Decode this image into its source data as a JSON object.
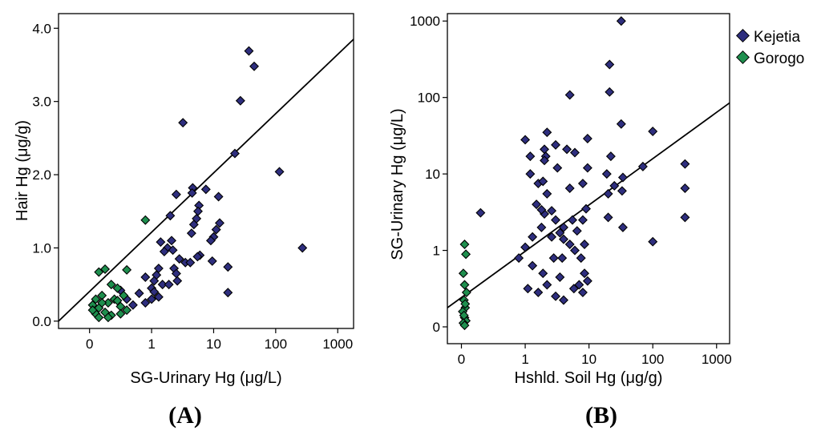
{
  "colors": {
    "kejetia": "#2e2e7e",
    "gorogo": "#1e8f4e",
    "stroke": "#000000"
  },
  "legend": {
    "kejetia": "Kejetia",
    "gorogo": "Gorogo"
  },
  "panels": {
    "A": "(A)",
    "B": "(B)"
  },
  "chart_data": [
    {
      "type": "scatter",
      "panel": "(A)",
      "xlabel": "SG-Urinary Hg (μg/L)",
      "ylabel": "Hair Hg (μg/g)",
      "xscale": "symlog",
      "xlim": [
        -0.5,
        1800
      ],
      "ylim": [
        -0.1,
        4.2
      ],
      "xticks": [
        0,
        1,
        10,
        100,
        1000
      ],
      "xtick_labels": [
        "0",
        "1",
        "10",
        "100",
        "1000"
      ],
      "yticks": [
        0.0,
        1.0,
        2.0,
        3.0,
        4.0
      ],
      "ytick_labels": [
        "0.0",
        "1.0",
        "2.0",
        "3.0",
        "4.0"
      ],
      "fit_line": {
        "x": [
          -0.5,
          1800
        ],
        "y": [
          0.0,
          3.85
        ]
      },
      "series": [
        {
          "name": "Kejetia",
          "points": [
            [
              37,
              3.69
            ],
            [
              45,
              3.48
            ],
            [
              27,
              3.01
            ],
            [
              3.2,
              2.71
            ],
            [
              22,
              2.29
            ],
            [
              4.6,
              1.82
            ],
            [
              7.5,
              1.8
            ],
            [
              2.5,
              1.73
            ],
            [
              4.5,
              1.75
            ],
            [
              5.8,
              1.58
            ],
            [
              12,
              1.7
            ],
            [
              5.6,
              1.5
            ],
            [
              5.3,
              1.4
            ],
            [
              4.8,
              1.32
            ],
            [
              4.4,
              1.2
            ],
            [
              2,
              1.44
            ],
            [
              1.4,
              1.08
            ],
            [
              2.1,
              1.1
            ],
            [
              1.8,
              1.0
            ],
            [
              1.6,
              0.95
            ],
            [
              2.2,
              0.97
            ],
            [
              12.5,
              1.34
            ],
            [
              11,
              1.25
            ],
            [
              10,
              1.15
            ],
            [
              9,
              1.1
            ],
            [
              6,
              0.9
            ],
            [
              5.5,
              0.88
            ],
            [
              2.8,
              0.85
            ],
            [
              3.5,
              0.8
            ],
            [
              4.2,
              0.8
            ],
            [
              2.3,
              0.72
            ],
            [
              2.5,
              0.65
            ],
            [
              1.3,
              0.72
            ],
            [
              1.2,
              0.63
            ],
            [
              0.9,
              0.6
            ],
            [
              1.1,
              0.55
            ],
            [
              1.0,
              0.45
            ],
            [
              0.8,
              0.38
            ],
            [
              1.5,
              0.5
            ],
            [
              1.9,
              0.5
            ],
            [
              2.6,
              0.55
            ],
            [
              9.5,
              0.82
            ],
            [
              17,
              0.74
            ],
            [
              17,
              0.39
            ],
            [
              115,
              2.04
            ],
            [
              270,
              1.0
            ],
            [
              0.6,
              0.3
            ],
            [
              1.0,
              0.3
            ],
            [
              1.3,
              0.33
            ],
            [
              0.7,
              0.22
            ],
            [
              0.5,
              0.42
            ],
            [
              1.1,
              0.4
            ],
            [
              0.9,
              0.25
            ]
          ]
        },
        {
          "name": "Gorogo",
          "points": [
            [
              0.9,
              1.38
            ],
            [
              0.15,
              0.67
            ],
            [
              0.25,
              0.71
            ],
            [
              0.35,
              0.5
            ],
            [
              0.45,
              0.45
            ],
            [
              0.6,
              0.7
            ],
            [
              0.2,
              0.35
            ],
            [
              0.1,
              0.3
            ],
            [
              0.05,
              0.22
            ],
            [
              0.15,
              0.18
            ],
            [
              0.3,
              0.25
            ],
            [
              0.4,
              0.3
            ],
            [
              0.5,
              0.2
            ],
            [
              0.6,
              0.15
            ],
            [
              0.25,
              0.12
            ],
            [
              0.35,
              0.08
            ],
            [
              0.1,
              0.1
            ],
            [
              0.05,
              0.15
            ],
            [
              0.15,
              0.05
            ],
            [
              0.3,
              0.05
            ],
            [
              0.5,
              0.1
            ],
            [
              0.45,
              0.28
            ],
            [
              0.2,
              0.25
            ],
            [
              0.55,
              0.35
            ]
          ]
        }
      ]
    },
    {
      "type": "scatter",
      "panel": "(B)",
      "xlabel": "Hshld. Soil Hg (μg/g)",
      "ylabel": "SG-Urinary Hg (μg/L)",
      "xscale": "symlog",
      "yscale": "symlog",
      "xlim": [
        -0.22,
        1600
      ],
      "ylim": [
        -0.22,
        1250
      ],
      "xticks": [
        0,
        1,
        10,
        100,
        1000
      ],
      "xtick_labels": [
        "0",
        "1",
        "10",
        "100",
        "1000"
      ],
      "yticks": [
        0,
        1,
        10,
        100,
        1000
      ],
      "ytick_labels": [
        "0",
        "1",
        "10",
        "100",
        "1000"
      ],
      "fit_line": {
        "x": [
          -0.22,
          1600
        ],
        "y": [
          0.25,
          85
        ]
      },
      "series": [
        {
          "name": "Kejetia",
          "points": [
            [
              32,
              1000
            ],
            [
              21,
              270
            ],
            [
              5,
              108
            ],
            [
              21,
              118
            ],
            [
              32,
              45
            ],
            [
              100,
              36
            ],
            [
              2.2,
              35
            ],
            [
              3,
              24
            ],
            [
              4.5,
              21
            ],
            [
              6,
              19
            ],
            [
              9.5,
              29
            ],
            [
              1,
              28
            ],
            [
              2,
              21
            ],
            [
              2.1,
              17
            ],
            [
              1.2,
              17
            ],
            [
              2,
              15
            ],
            [
              3.2,
              12
            ],
            [
              1.2,
              10
            ],
            [
              9.5,
              12
            ],
            [
              22,
              17
            ],
            [
              1.6,
              7.5
            ],
            [
              1.9,
              8
            ],
            [
              2.2,
              5.5
            ],
            [
              5,
              6.5
            ],
            [
              8,
              7.5
            ],
            [
              19,
              10
            ],
            [
              25,
              7
            ],
            [
              34,
              9
            ],
            [
              70,
              12.5
            ],
            [
              320,
              13.5
            ],
            [
              320,
              6.5
            ],
            [
              33,
              6
            ],
            [
              20,
              5.5
            ],
            [
              2,
              3
            ],
            [
              2.6,
              3.3
            ],
            [
              1.5,
              4
            ],
            [
              1.8,
              3.4
            ],
            [
              3,
              2.5
            ],
            [
              4,
              2
            ],
            [
              5.5,
              2.5
            ],
            [
              8,
              2.5
            ],
            [
              9,
              3.5
            ],
            [
              1.3,
              1.5
            ],
            [
              1.8,
              2
            ],
            [
              2.6,
              1.5
            ],
            [
              3.5,
              1.7
            ],
            [
              4,
              1.4
            ],
            [
              6.5,
              1.8
            ],
            [
              8.5,
              1.2
            ],
            [
              1,
              1.1
            ],
            [
              1.3,
              0.8
            ],
            [
              1.9,
              0.7
            ],
            [
              2.8,
              0.9
            ],
            [
              3.8,
              0.9
            ],
            [
              5,
              1.2
            ],
            [
              6,
              1
            ],
            [
              7.5,
              0.9
            ],
            [
              8.5,
              0.7
            ],
            [
              1.6,
              0.45
            ],
            [
              2.2,
              0.55
            ],
            [
              3,
              0.4
            ],
            [
              4,
              0.35
            ],
            [
              5.8,
              0.5
            ],
            [
              7,
              0.55
            ],
            [
              8,
              0.45
            ],
            [
              9.5,
              0.6
            ],
            [
              0.3,
              3.1
            ],
            [
              0.9,
              0.9
            ],
            [
              1.1,
              0.5
            ],
            [
              20,
              2.7
            ],
            [
              34,
              2
            ],
            [
              100,
              1.3
            ],
            [
              320,
              2.7
            ],
            [
              3.5,
              0.65
            ]
          ]
        },
        {
          "name": "Gorogo",
          "points": [
            [
              0.05,
              1.2
            ],
            [
              0.07,
              0.95
            ],
            [
              0.03,
              0.7
            ],
            [
              0.05,
              0.55
            ],
            [
              0.08,
              0.45
            ],
            [
              0.04,
              0.35
            ],
            [
              0.06,
              0.25
            ],
            [
              0.02,
              0.2
            ],
            [
              0.05,
              0.12
            ],
            [
              0.07,
              0.08
            ],
            [
              0.03,
              0.05
            ],
            [
              0.05,
              0.02
            ],
            [
              0.04,
              0.15
            ],
            [
              0.06,
              0.3
            ]
          ]
        }
      ]
    }
  ]
}
